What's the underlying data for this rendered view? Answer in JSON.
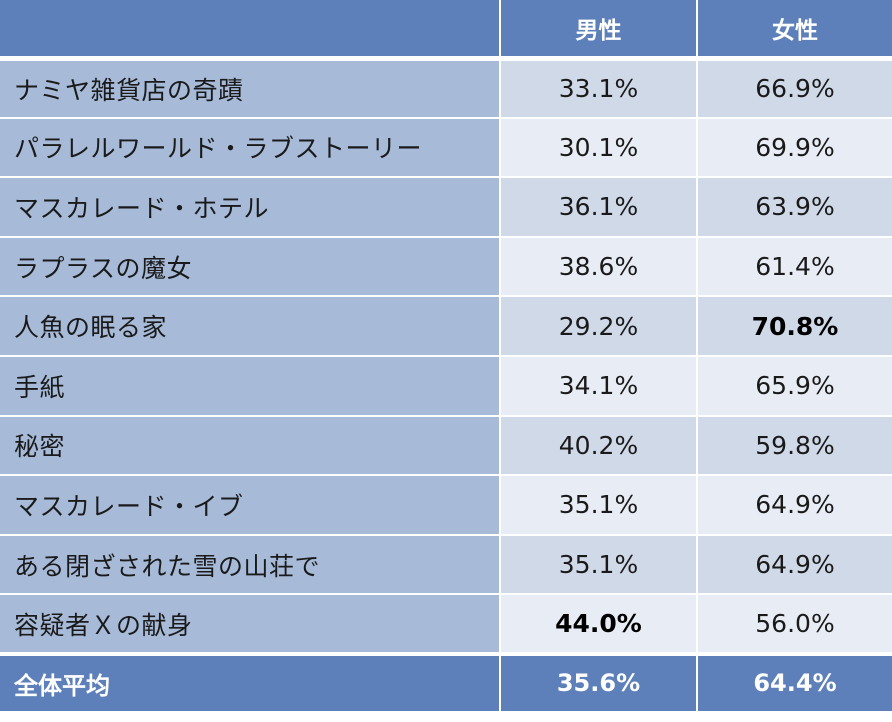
{
  "chart_data": {
    "type": "table",
    "columns": [
      "",
      "男性",
      "女性"
    ],
    "rows": [
      {
        "name": "ナミヤ雑貨店の奇蹟",
        "male": "33.1%",
        "female": "66.9%",
        "highlight": ""
      },
      {
        "name": "パラレルワールド・ラブストーリー",
        "male": "30.1%",
        "female": "69.9%",
        "highlight": ""
      },
      {
        "name": "マスカレード・ホテル",
        "male": "36.1%",
        "female": "63.9%",
        "highlight": ""
      },
      {
        "name": "ラプラスの魔女",
        "male": "38.6%",
        "female": "61.4%",
        "highlight": ""
      },
      {
        "name": "人魚の眠る家",
        "male": "29.2%",
        "female": "70.8%",
        "highlight": "female"
      },
      {
        "name": "手紙",
        "male": "34.1%",
        "female": "65.9%",
        "highlight": ""
      },
      {
        "name": "秘密",
        "male": "40.2%",
        "female": "59.8%",
        "highlight": ""
      },
      {
        "name": "マスカレード・イブ",
        "male": "35.1%",
        "female": "64.9%",
        "highlight": ""
      },
      {
        "name": "ある閉ざされた雪の山荘で",
        "male": "35.1%",
        "female": "64.9%",
        "highlight": ""
      },
      {
        "name": "容疑者Ｘの献身",
        "male": "44.0%",
        "female": "56.0%",
        "highlight": "male"
      }
    ],
    "total": {
      "name": "全体平均",
      "male": "35.6%",
      "female": "64.4%"
    },
    "colors": {
      "header": "#5d80ba",
      "name_cell": "#a7bbd9",
      "value_odd": "#d0d9e8",
      "value_even": "#e8ecf4"
    }
  }
}
